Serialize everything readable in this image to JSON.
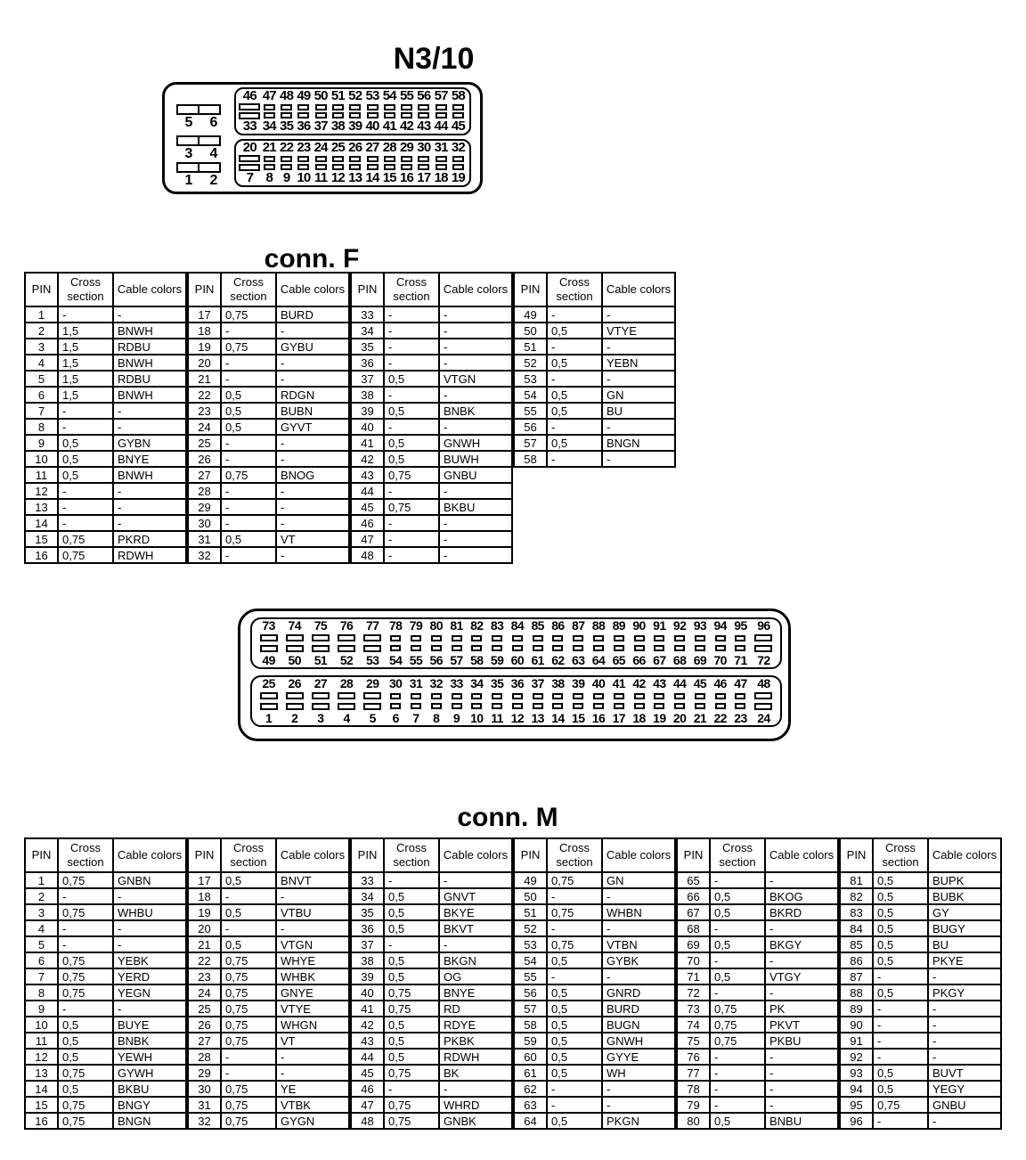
{
  "titles": {
    "main": "N3/10",
    "conn_f": "conn. F",
    "conn_m": "conn. M"
  },
  "table_headers": {
    "pin": "PIN",
    "cross": "Cross section",
    "colors": "Cable colors"
  },
  "connector_top": {
    "side_pairs": [
      [
        "5",
        "6"
      ],
      [
        "3",
        "4"
      ],
      [
        "1",
        "2"
      ]
    ],
    "blocks": [
      {
        "top": [
          "46",
          "47",
          "48",
          "49",
          "50",
          "51",
          "52",
          "53",
          "54",
          "55",
          "56",
          "57",
          "58"
        ],
        "bottom": [
          "33",
          "34",
          "35",
          "36",
          "37",
          "38",
          "39",
          "40",
          "41",
          "42",
          "43",
          "44",
          "45"
        ]
      },
      {
        "top": [
          "20",
          "21",
          "22",
          "23",
          "24",
          "25",
          "26",
          "27",
          "28",
          "29",
          "30",
          "31",
          "32"
        ],
        "bottom": [
          "7",
          "8",
          "9",
          "10",
          "11",
          "12",
          "13",
          "14",
          "15",
          "16",
          "17",
          "18",
          "19"
        ]
      }
    ]
  },
  "connector_mid": {
    "blocks": [
      {
        "top": [
          "73",
          "74",
          "75",
          "76",
          "77",
          "78",
          "79",
          "80",
          "81",
          "82",
          "83",
          "84",
          "85",
          "86",
          "87",
          "88",
          "89",
          "90",
          "91",
          "92",
          "93",
          "94",
          "95",
          "96"
        ],
        "bottom": [
          "49",
          "50",
          "51",
          "52",
          "53",
          "54",
          "55",
          "56",
          "57",
          "58",
          "59",
          "60",
          "61",
          "62",
          "63",
          "64",
          "65",
          "66",
          "67",
          "68",
          "69",
          "70",
          "71",
          "72"
        ]
      },
      {
        "top": [
          "25",
          "26",
          "27",
          "28",
          "29",
          "30",
          "31",
          "32",
          "33",
          "34",
          "35",
          "36",
          "37",
          "38",
          "39",
          "40",
          "41",
          "42",
          "43",
          "44",
          "45",
          "46",
          "47",
          "48"
        ],
        "bottom": [
          "1",
          "2",
          "3",
          "4",
          "5",
          "6",
          "7",
          "8",
          "9",
          "10",
          "11",
          "12",
          "13",
          "14",
          "15",
          "16",
          "17",
          "18",
          "19",
          "20",
          "21",
          "22",
          "23",
          "24"
        ]
      }
    ]
  },
  "conn_f": {
    "groups": [
      {
        "rows": [
          [
            "1",
            "-",
            "-"
          ],
          [
            "2",
            "1,5",
            "BNWH"
          ],
          [
            "3",
            "1,5",
            "RDBU"
          ],
          [
            "4",
            "1,5",
            "BNWH"
          ],
          [
            "5",
            "1,5",
            "RDBU"
          ],
          [
            "6",
            "1,5",
            "BNWH"
          ],
          [
            "7",
            "-",
            "-"
          ],
          [
            "8",
            "-",
            "-"
          ],
          [
            "9",
            "0,5",
            "GYBN"
          ],
          [
            "10",
            "0,5",
            "BNYE"
          ],
          [
            "11",
            "0,5",
            "BNWH"
          ],
          [
            "12",
            "-",
            "-"
          ],
          [
            "13",
            "-",
            "-"
          ],
          [
            "14",
            "-",
            "-"
          ],
          [
            "15",
            "0,75",
            "PKRD"
          ],
          [
            "16",
            "0,75",
            "RDWH"
          ]
        ]
      },
      {
        "rows": [
          [
            "17",
            "0,75",
            "BURD"
          ],
          [
            "18",
            "-",
            "-"
          ],
          [
            "19",
            "0,75",
            "GYBU"
          ],
          [
            "20",
            "-",
            "-"
          ],
          [
            "21",
            "-",
            "-"
          ],
          [
            "22",
            "0,5",
            "RDGN"
          ],
          [
            "23",
            "0,5",
            "BUBN"
          ],
          [
            "24",
            "0,5",
            "GYVT"
          ],
          [
            "25",
            "-",
            "-"
          ],
          [
            "26",
            "-",
            "-"
          ],
          [
            "27",
            "0,75",
            "BNOG"
          ],
          [
            "28",
            "-",
            "-"
          ],
          [
            "29",
            "-",
            "-"
          ],
          [
            "30",
            "-",
            "-"
          ],
          [
            "31",
            "0,5",
            "VT"
          ],
          [
            "32",
            "-",
            "-"
          ]
        ]
      },
      {
        "rows": [
          [
            "33",
            "-",
            "-"
          ],
          [
            "34",
            "-",
            "-"
          ],
          [
            "35",
            "-",
            "-"
          ],
          [
            "36",
            "-",
            "-"
          ],
          [
            "37",
            "0,5",
            "VTGN"
          ],
          [
            "38",
            "-",
            "-"
          ],
          [
            "39",
            "0,5",
            "BNBK"
          ],
          [
            "40",
            "-",
            "-"
          ],
          [
            "41",
            "0,5",
            "GNWH"
          ],
          [
            "42",
            "0,5",
            "BUWH"
          ],
          [
            "43",
            "0,75",
            "GNBU"
          ],
          [
            "44",
            "-",
            "-"
          ],
          [
            "45",
            "0,75",
            "BKBU"
          ],
          [
            "46",
            "-",
            "-"
          ],
          [
            "47",
            "-",
            "-"
          ],
          [
            "48",
            "-",
            "-"
          ]
        ]
      },
      {
        "rows": [
          [
            "49",
            "-",
            "-"
          ],
          [
            "50",
            "0,5",
            "VTYE"
          ],
          [
            "51",
            "-",
            "-"
          ],
          [
            "52",
            "0,5",
            "YEBN"
          ],
          [
            "53",
            "-",
            "-"
          ],
          [
            "54",
            "0,5",
            "GN"
          ],
          [
            "55",
            "0,5",
            "BU"
          ],
          [
            "56",
            "-",
            "-"
          ],
          [
            "57",
            "0,5",
            "BNGN"
          ],
          [
            "58",
            "-",
            "-"
          ]
        ]
      }
    ]
  },
  "conn_m": {
    "groups": [
      {
        "rows": [
          [
            "1",
            "0,75",
            "GNBN"
          ],
          [
            "2",
            "-",
            "-"
          ],
          [
            "3",
            "0,75",
            "WHBU"
          ],
          [
            "4",
            "-",
            "-"
          ],
          [
            "5",
            "-",
            "-"
          ],
          [
            "6",
            "0,75",
            "YEBK"
          ],
          [
            "7",
            "0,75",
            "YERD"
          ],
          [
            "8",
            "0,75",
            "YEGN"
          ],
          [
            "9",
            "-",
            "-"
          ],
          [
            "10",
            "0,5",
            "BUYE"
          ],
          [
            "11",
            "0,5",
            "BNBK"
          ],
          [
            "12",
            "0,5",
            "YEWH"
          ],
          [
            "13",
            "0,75",
            "GYWH"
          ],
          [
            "14",
            "0,5",
            "BKBU"
          ],
          [
            "15",
            "0,75",
            "BNGY"
          ],
          [
            "16",
            "0,75",
            "BNGN"
          ]
        ]
      },
      {
        "rows": [
          [
            "17",
            "0,5",
            "BNVT"
          ],
          [
            "18",
            "-",
            "-"
          ],
          [
            "19",
            "0,5",
            "VTBU"
          ],
          [
            "20",
            "-",
            "-"
          ],
          [
            "21",
            "0,5",
            "VTGN"
          ],
          [
            "22",
            "0,75",
            "WHYE"
          ],
          [
            "23",
            "0,75",
            "WHBK"
          ],
          [
            "24",
            "0,75",
            "GNYE"
          ],
          [
            "25",
            "0,75",
            "VTYE"
          ],
          [
            "26",
            "0,75",
            "WHGN"
          ],
          [
            "27",
            "0,75",
            "VT"
          ],
          [
            "28",
            "-",
            "-"
          ],
          [
            "29",
            "-",
            "-"
          ],
          [
            "30",
            "0,75",
            "YE"
          ],
          [
            "31",
            "0,75",
            "VTBK"
          ],
          [
            "32",
            "0,75",
            "GYGN"
          ]
        ]
      },
      {
        "rows": [
          [
            "33",
            "-",
            "-"
          ],
          [
            "34",
            "0,5",
            "GNVT"
          ],
          [
            "35",
            "0,5",
            "BKYE"
          ],
          [
            "36",
            "0,5",
            "BKVT"
          ],
          [
            "37",
            "-",
            "-"
          ],
          [
            "38",
            "0,5",
            "BKGN"
          ],
          [
            "39",
            "0,5",
            "OG"
          ],
          [
            "40",
            "0,75",
            "BNYE"
          ],
          [
            "41",
            "0,75",
            "RD"
          ],
          [
            "42",
            "0,5",
            "RDYE"
          ],
          [
            "43",
            "0,5",
            "PKBK"
          ],
          [
            "44",
            "0,5",
            "RDWH"
          ],
          [
            "45",
            "0,75",
            "BK"
          ],
          [
            "46",
            "-",
            "-"
          ],
          [
            "47",
            "0,75",
            "WHRD"
          ],
          [
            "48",
            "0,75",
            "GNBK"
          ]
        ]
      },
      {
        "rows": [
          [
            "49",
            "0,75",
            "GN"
          ],
          [
            "50",
            "-",
            "-"
          ],
          [
            "51",
            "0,75",
            "WHBN"
          ],
          [
            "52",
            "-",
            "-"
          ],
          [
            "53",
            "0,75",
            "VTBN"
          ],
          [
            "54",
            "0,5",
            "GYBK"
          ],
          [
            "55",
            "-",
            "-"
          ],
          [
            "56",
            "0,5",
            "GNRD"
          ],
          [
            "57",
            "0,5",
            "BURD"
          ],
          [
            "58",
            "0,5",
            "BUGN"
          ],
          [
            "59",
            "0,5",
            "GNWH"
          ],
          [
            "60",
            "0,5",
            "GYYE"
          ],
          [
            "61",
            "0,5",
            "WH"
          ],
          [
            "62",
            "-",
            "-"
          ],
          [
            "63",
            "-",
            "-"
          ],
          [
            "64",
            "0,5",
            "PKGN"
          ]
        ]
      },
      {
        "rows": [
          [
            "65",
            "-",
            "-"
          ],
          [
            "66",
            "0,5",
            "BKOG"
          ],
          [
            "67",
            "0,5",
            "BKRD"
          ],
          [
            "68",
            "-",
            "-"
          ],
          [
            "69",
            "0,5",
            "BKGY"
          ],
          [
            "70",
            "-",
            "-"
          ],
          [
            "71",
            "0,5",
            "VTGY"
          ],
          [
            "72",
            "-",
            "-"
          ],
          [
            "73",
            "0,75",
            "PK"
          ],
          [
            "74",
            "0,75",
            "PKVT"
          ],
          [
            "75",
            "0,75",
            "PKBU"
          ],
          [
            "76",
            "-",
            "-"
          ],
          [
            "77",
            "-",
            "-"
          ],
          [
            "78",
            "-",
            "-"
          ],
          [
            "79",
            "-",
            "-"
          ],
          [
            "80",
            "0,5",
            "BNBU"
          ]
        ]
      },
      {
        "rows": [
          [
            "81",
            "0,5",
            "BUPK"
          ],
          [
            "82",
            "0,5",
            "BUBK"
          ],
          [
            "83",
            "0,5",
            "GY"
          ],
          [
            "84",
            "0,5",
            "BUGY"
          ],
          [
            "85",
            "0,5",
            "BU"
          ],
          [
            "86",
            "0,5",
            "PKYE"
          ],
          [
            "87",
            "-",
            "-"
          ],
          [
            "88",
            "0,5",
            "PKGY"
          ],
          [
            "89",
            "-",
            "-"
          ],
          [
            "90",
            "-",
            "-"
          ],
          [
            "91",
            "-",
            "-"
          ],
          [
            "92",
            "-",
            "-"
          ],
          [
            "93",
            "0,5",
            "BUVT"
          ],
          [
            "94",
            "0,5",
            "YEGY"
          ],
          [
            "95",
            "0,75",
            "GNBU"
          ],
          [
            "96",
            "-",
            "-"
          ]
        ]
      }
    ]
  }
}
